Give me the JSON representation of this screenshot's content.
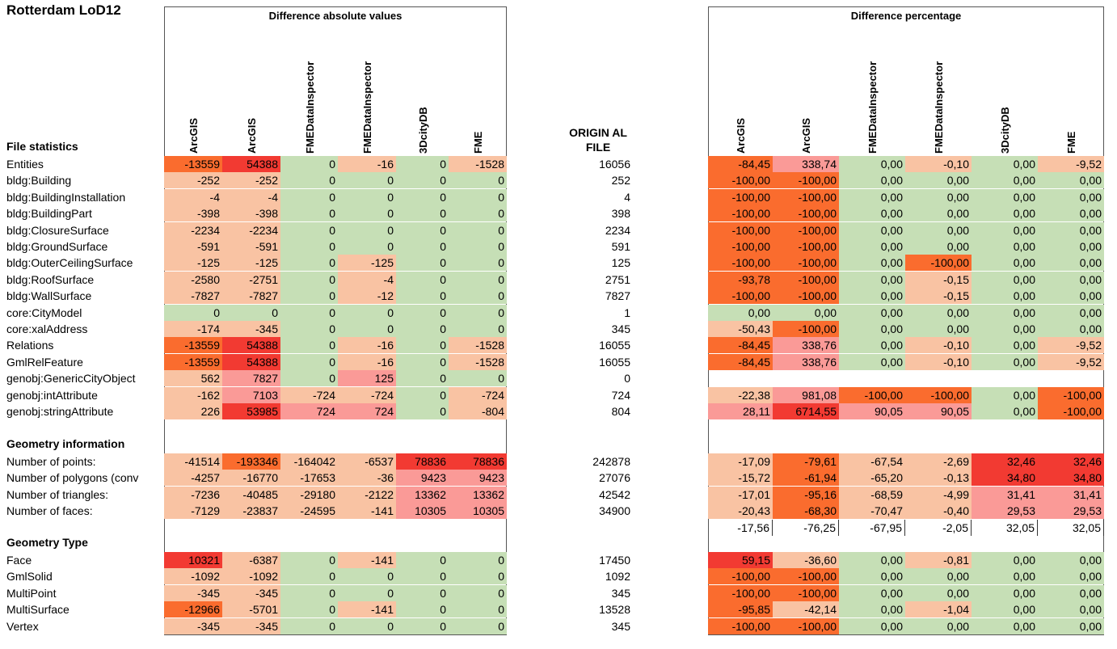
{
  "title": "Rotterdam LoD12",
  "left_table": {
    "group_title": "Difference absolute values",
    "columns": [
      "ArcGIS",
      "ArcGIS",
      "FMEDataInspector",
      "FMEDataInspector",
      "3DcityDB",
      "FME"
    ]
  },
  "right_table": {
    "group_title": "Difference percentage",
    "columns": [
      "ArcGIS",
      "ArcGIS",
      "FMEDataInspector",
      "FMEDataInspector",
      "3DcityDB",
      "FME"
    ]
  },
  "original_header": "ORIGIN AL FILE",
  "colors": {
    "green": "#c6dfb6",
    "light": "#f9c3a3",
    "orange": "#fa6c2e",
    "red": "#f23a32",
    "pink": "#fa9a97"
  },
  "sections": [
    {
      "title": "File statistics",
      "rows": [
        {
          "label": "Entities",
          "abs": [
            "-13559",
            "54388",
            "0",
            "-16",
            "0",
            "-1528"
          ],
          "absc": [
            "o",
            "r",
            "g",
            "l",
            "g",
            "l"
          ],
          "orig": "16056",
          "pct": [
            "-84,45",
            "338,74",
            "0,00",
            "-0,10",
            "0,00",
            "-9,52"
          ],
          "pctc": [
            "o",
            "p",
            "g",
            "l",
            "g",
            "l"
          ]
        },
        {
          "label": "bldg:Building",
          "abs": [
            "-252",
            "-252",
            "0",
            "0",
            "0",
            "0"
          ],
          "absc": [
            "l",
            "l",
            "g",
            "g",
            "g",
            "g"
          ],
          "orig": "252",
          "pct": [
            "-100,00",
            "-100,00",
            "0,00",
            "0,00",
            "0,00",
            "0,00"
          ],
          "pctc": [
            "o",
            "o",
            "g",
            "g",
            "g",
            "g"
          ]
        },
        {
          "label": "bldg:BuildingInstallation",
          "abs": [
            "-4",
            "-4",
            "0",
            "0",
            "0",
            "0"
          ],
          "absc": [
            "l",
            "l",
            "g",
            "g",
            "g",
            "g"
          ],
          "orig": "4",
          "pct": [
            "-100,00",
            "-100,00",
            "0,00",
            "0,00",
            "0,00",
            "0,00"
          ],
          "pctc": [
            "o",
            "o",
            "g",
            "g",
            "g",
            "g"
          ]
        },
        {
          "label": "bldg:BuildingPart",
          "abs": [
            "-398",
            "-398",
            "0",
            "0",
            "0",
            "0"
          ],
          "absc": [
            "l",
            "l",
            "g",
            "g",
            "g",
            "g"
          ],
          "orig": "398",
          "pct": [
            "-100,00",
            "-100,00",
            "0,00",
            "0,00",
            "0,00",
            "0,00"
          ],
          "pctc": [
            "o",
            "o",
            "g",
            "g",
            "g",
            "g"
          ]
        },
        {
          "label": "bldg:ClosureSurface",
          "abs": [
            "-2234",
            "-2234",
            "0",
            "0",
            "0",
            "0"
          ],
          "absc": [
            "l",
            "l",
            "g",
            "g",
            "g",
            "g"
          ],
          "orig": "2234",
          "pct": [
            "-100,00",
            "-100,00",
            "0,00",
            "0,00",
            "0,00",
            "0,00"
          ],
          "pctc": [
            "o",
            "o",
            "g",
            "g",
            "g",
            "g"
          ]
        },
        {
          "label": "bldg:GroundSurface",
          "abs": [
            "-591",
            "-591",
            "0",
            "0",
            "0",
            "0"
          ],
          "absc": [
            "l",
            "l",
            "g",
            "g",
            "g",
            "g"
          ],
          "orig": "591",
          "pct": [
            "-100,00",
            "-100,00",
            "0,00",
            "0,00",
            "0,00",
            "0,00"
          ],
          "pctc": [
            "o",
            "o",
            "g",
            "g",
            "g",
            "g"
          ]
        },
        {
          "label": "bldg:OuterCeilingSurface",
          "abs": [
            "-125",
            "-125",
            "0",
            "-125",
            "0",
            "0"
          ],
          "absc": [
            "l",
            "l",
            "g",
            "l",
            "g",
            "g"
          ],
          "orig": "125",
          "pct": [
            "-100,00",
            "-100,00",
            "0,00",
            "-100,00",
            "0,00",
            "0,00"
          ],
          "pctc": [
            "o",
            "o",
            "g",
            "o",
            "g",
            "g"
          ]
        },
        {
          "label": "bldg:RoofSurface",
          "abs": [
            "-2580",
            "-2751",
            "0",
            "-4",
            "0",
            "0"
          ],
          "absc": [
            "l",
            "l",
            "g",
            "l",
            "g",
            "g"
          ],
          "orig": "2751",
          "pct": [
            "-93,78",
            "-100,00",
            "0,00",
            "-0,15",
            "0,00",
            "0,00"
          ],
          "pctc": [
            "o",
            "o",
            "g",
            "l",
            "g",
            "g"
          ]
        },
        {
          "label": "bldg:WallSurface",
          "abs": [
            "-7827",
            "-7827",
            "0",
            "-12",
            "0",
            "0"
          ],
          "absc": [
            "l",
            "l",
            "g",
            "l",
            "g",
            "g"
          ],
          "orig": "7827",
          "pct": [
            "-100,00",
            "-100,00",
            "0,00",
            "-0,15",
            "0,00",
            "0,00"
          ],
          "pctc": [
            "o",
            "o",
            "g",
            "l",
            "g",
            "g"
          ]
        },
        {
          "label": "core:CityModel",
          "abs": [
            "0",
            "0",
            "0",
            "0",
            "0",
            "0"
          ],
          "absc": [
            "g",
            "g",
            "g",
            "g",
            "g",
            "g"
          ],
          "orig": "1",
          "pct": [
            "0,00",
            "0,00",
            "0,00",
            "0,00",
            "0,00",
            "0,00"
          ],
          "pctc": [
            "g",
            "g",
            "g",
            "g",
            "g",
            "g"
          ]
        },
        {
          "label": "core:xalAddress",
          "abs": [
            "-174",
            "-345",
            "0",
            "0",
            "0",
            "0"
          ],
          "absc": [
            "l",
            "l",
            "g",
            "g",
            "g",
            "g"
          ],
          "orig": "345",
          "pct": [
            "-50,43",
            "-100,00",
            "0,00",
            "0,00",
            "0,00",
            "0,00"
          ],
          "pctc": [
            "l",
            "o",
            "g",
            "g",
            "g",
            "g"
          ]
        },
        {
          "label": "Relations",
          "abs": [
            "-13559",
            "54388",
            "0",
            "-16",
            "0",
            "-1528"
          ],
          "absc": [
            "o",
            "r",
            "g",
            "l",
            "g",
            "l"
          ],
          "orig": "16055",
          "pct": [
            "-84,45",
            "338,76",
            "0,00",
            "-0,10",
            "0,00",
            "-9,52"
          ],
          "pctc": [
            "o",
            "p",
            "g",
            "l",
            "g",
            "l"
          ]
        },
        {
          "label": "GmlRelFeature",
          "abs": [
            "-13559",
            "54388",
            "0",
            "-16",
            "0",
            "-1528"
          ],
          "absc": [
            "o",
            "r",
            "g",
            "l",
            "g",
            "l"
          ],
          "orig": "16055",
          "pct": [
            "-84,45",
            "338,76",
            "0,00",
            "-0,10",
            "0,00",
            "-9,52"
          ],
          "pctc": [
            "o",
            "p",
            "g",
            "l",
            "g",
            "l"
          ]
        },
        {
          "label": "genobj:GenericCityObject",
          "abs": [
            "562",
            "7827",
            "0",
            "125",
            "0",
            "0"
          ],
          "absc": [
            "l",
            "p",
            "g",
            "p",
            "g",
            "g"
          ],
          "orig": "0",
          "pct": [
            "",
            "",
            "",
            "",
            "",
            ""
          ],
          "pctc": [
            "w",
            "w",
            "w",
            "w",
            "w",
            "w"
          ]
        },
        {
          "label": "genobj:intAttribute",
          "abs": [
            "-162",
            "7103",
            "-724",
            "-724",
            "0",
            "-724"
          ],
          "absc": [
            "l",
            "p",
            "l",
            "l",
            "g",
            "l"
          ],
          "orig": "724",
          "pct": [
            "-22,38",
            "981,08",
            "-100,00",
            "-100,00",
            "0,00",
            "-100,00"
          ],
          "pctc": [
            "l",
            "p",
            "o",
            "o",
            "g",
            "o"
          ]
        },
        {
          "label": "genobj:stringAttribute",
          "abs": [
            "226",
            "53985",
            "724",
            "724",
            "0",
            "-804"
          ],
          "absc": [
            "l",
            "r",
            "p",
            "p",
            "g",
            "l"
          ],
          "orig": "804",
          "pct": [
            "28,11",
            "6714,55",
            "90,05",
            "90,05",
            "0,00",
            "-100,00"
          ],
          "pctc": [
            "p",
            "r",
            "p",
            "p",
            "g",
            "o"
          ]
        }
      ]
    },
    {
      "title": "Geometry information",
      "rows": [
        {
          "label": "Number of points:",
          "abs": [
            "-41514",
            "-193346",
            "-164042",
            "-6537",
            "78836",
            "78836"
          ],
          "absc": [
            "l",
            "o",
            "l",
            "l",
            "r",
            "r"
          ],
          "orig": "242878",
          "pct": [
            "-17,09",
            "-79,61",
            "-67,54",
            "-2,69",
            "32,46",
            "32,46"
          ],
          "pctc": [
            "l",
            "o",
            "l",
            "l",
            "r",
            "r"
          ]
        },
        {
          "label": "Number of polygons (conv",
          "abs": [
            "-4257",
            "-16770",
            "-17653",
            "-36",
            "9423",
            "9423"
          ],
          "absc": [
            "l",
            "l",
            "l",
            "l",
            "p",
            "p"
          ],
          "orig": "27076",
          "pct": [
            "-15,72",
            "-61,94",
            "-65,20",
            "-0,13",
            "34,80",
            "34,80"
          ],
          "pctc": [
            "l",
            "o",
            "l",
            "l",
            "r",
            "r"
          ]
        },
        {
          "label": "Number of triangles:",
          "abs": [
            "-7236",
            "-40485",
            "-29180",
            "-2122",
            "13362",
            "13362"
          ],
          "absc": [
            "l",
            "l",
            "l",
            "l",
            "p",
            "p"
          ],
          "orig": "42542",
          "pct": [
            "-17,01",
            "-95,16",
            "-68,59",
            "-4,99",
            "31,41",
            "31,41"
          ],
          "pctc": [
            "l",
            "o",
            "l",
            "l",
            "p",
            "p"
          ]
        },
        {
          "label": "Number of faces:",
          "abs": [
            "-7129",
            "-23837",
            "-24595",
            "-141",
            "10305",
            "10305"
          ],
          "absc": [
            "l",
            "l",
            "l",
            "l",
            "p",
            "p"
          ],
          "orig": "34900",
          "pct": [
            "-20,43",
            "-68,30",
            "-70,47",
            "-0,40",
            "29,53",
            "29,53"
          ],
          "pctc": [
            "l",
            "o",
            "l",
            "l",
            "p",
            "p"
          ]
        }
      ]
    },
    {
      "title": "Geometry Type",
      "rows": [
        {
          "label": "Face",
          "abs": [
            "10321",
            "-6387",
            "0",
            "-141",
            "0",
            "0"
          ],
          "absc": [
            "r",
            "l",
            "g",
            "l",
            "g",
            "g"
          ],
          "orig": "17450",
          "pct": [
            "59,15",
            "-36,60",
            "0,00",
            "-0,81",
            "0,00",
            "0,00"
          ],
          "pctc": [
            "r",
            "l",
            "g",
            "l",
            "g",
            "g"
          ]
        },
        {
          "label": "GmlSolid",
          "abs": [
            "-1092",
            "-1092",
            "0",
            "0",
            "0",
            "0"
          ],
          "absc": [
            "l",
            "l",
            "g",
            "g",
            "g",
            "g"
          ],
          "orig": "1092",
          "pct": [
            "-100,00",
            "-100,00",
            "0,00",
            "0,00",
            "0,00",
            "0,00"
          ],
          "pctc": [
            "o",
            "o",
            "g",
            "g",
            "g",
            "g"
          ]
        },
        {
          "label": "MultiPoint",
          "abs": [
            "-345",
            "-345",
            "0",
            "0",
            "0",
            "0"
          ],
          "absc": [
            "l",
            "l",
            "g",
            "g",
            "g",
            "g"
          ],
          "orig": "345",
          "pct": [
            "-100,00",
            "-100,00",
            "0,00",
            "0,00",
            "0,00",
            "0,00"
          ],
          "pctc": [
            "o",
            "o",
            "g",
            "g",
            "g",
            "g"
          ]
        },
        {
          "label": "MultiSurface",
          "abs": [
            "-12966",
            "-5701",
            "0",
            "-141",
            "0",
            "0"
          ],
          "absc": [
            "o",
            "l",
            "g",
            "l",
            "g",
            "g"
          ],
          "orig": "13528",
          "pct": [
            "-95,85",
            "-42,14",
            "0,00",
            "-1,04",
            "0,00",
            "0,00"
          ],
          "pctc": [
            "o",
            "l",
            "g",
            "l",
            "g",
            "g"
          ]
        },
        {
          "label": "Vertex",
          "abs": [
            "-345",
            "-345",
            "0",
            "0",
            "0",
            "0"
          ],
          "absc": [
            "l",
            "l",
            "g",
            "g",
            "g",
            "g"
          ],
          "orig": "345",
          "pct": [
            "-100,00",
            "-100,00",
            "0,00",
            "0,00",
            "0,00",
            "0,00"
          ],
          "pctc": [
            "o",
            "o",
            "g",
            "g",
            "g",
            "g"
          ]
        }
      ]
    }
  ],
  "averages": [
    "-17,56",
    "-76,25",
    "-67,95",
    "-2,05",
    "32,05",
    "32,05"
  ]
}
